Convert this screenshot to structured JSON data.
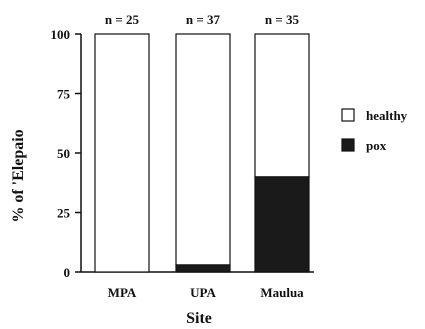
{
  "chart_data": {
    "type": "bar",
    "stacked": true,
    "title": "",
    "xlabel": "Site",
    "ylabel": "% of 'Elepaio",
    "categories": [
      "MPA",
      "UPA",
      "Maulua"
    ],
    "sample_sizes": [
      "n = 25",
      "n = 37",
      "n = 35"
    ],
    "ylim": [
      0,
      100
    ],
    "yticks": [
      "0",
      "25",
      "50",
      "75",
      "100"
    ],
    "series": [
      {
        "name": "pox",
        "values": [
          0,
          3,
          40
        ],
        "color": "#1a1a1a"
      },
      {
        "name": "healthy",
        "values": [
          100,
          97,
          60
        ],
        "color": "#ffffff"
      }
    ],
    "legend": {
      "placement": "right",
      "entries": [
        "healthy",
        "pox"
      ]
    },
    "grid": false
  }
}
